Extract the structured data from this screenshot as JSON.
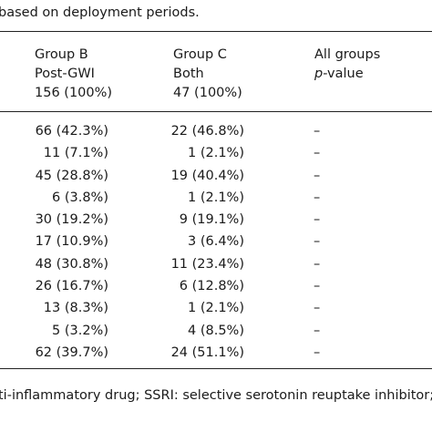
{
  "caption": "based on deployment periods.",
  "header": {
    "group_b": {
      "line1": "Group B",
      "line2": "Post-GWI",
      "line3": "156 (100%)"
    },
    "group_c": {
      "line1": "Group C",
      "line2": "Both",
      "line3": "47 (100%)"
    },
    "all_groups": {
      "line1": "All groups",
      "line2_italic": "p",
      "line2_rest": "-value"
    }
  },
  "rows": [
    {
      "b": "66 (42.3%)",
      "c": "22 (46.8%)",
      "p": "–"
    },
    {
      "b": "11 (7.1%)",
      "c": "1 (2.1%)",
      "p": "–"
    },
    {
      "b": "45 (28.8%)",
      "c": "19 (40.4%)",
      "p": "–"
    },
    {
      "b": "6 (3.8%)",
      "c": "1 (2.1%)",
      "p": "–"
    },
    {
      "b": "30 (19.2%)",
      "c": "9 (19.1%)",
      "p": "–"
    },
    {
      "b": "17 (10.9%)",
      "c": "3 (6.4%)",
      "p": "–"
    },
    {
      "b": "48 (30.8%)",
      "c": "11 (23.4%)",
      "p": "–"
    },
    {
      "b": "26 (16.7%)",
      "c": "6 (12.8%)",
      "p": "–"
    },
    {
      "b": "13 (8.3%)",
      "c": "1 (2.1%)",
      "p": "–"
    },
    {
      "b": "5 (3.2%)",
      "c": "4 (8.5%)",
      "p": "–"
    },
    {
      "b": "62 (39.7%)",
      "c": "24 (51.1%)",
      "p": "–"
    }
  ],
  "footnote": "ti-inflammatory drug; SSRI: selective serotonin reuptake inhibitor; G"
}
